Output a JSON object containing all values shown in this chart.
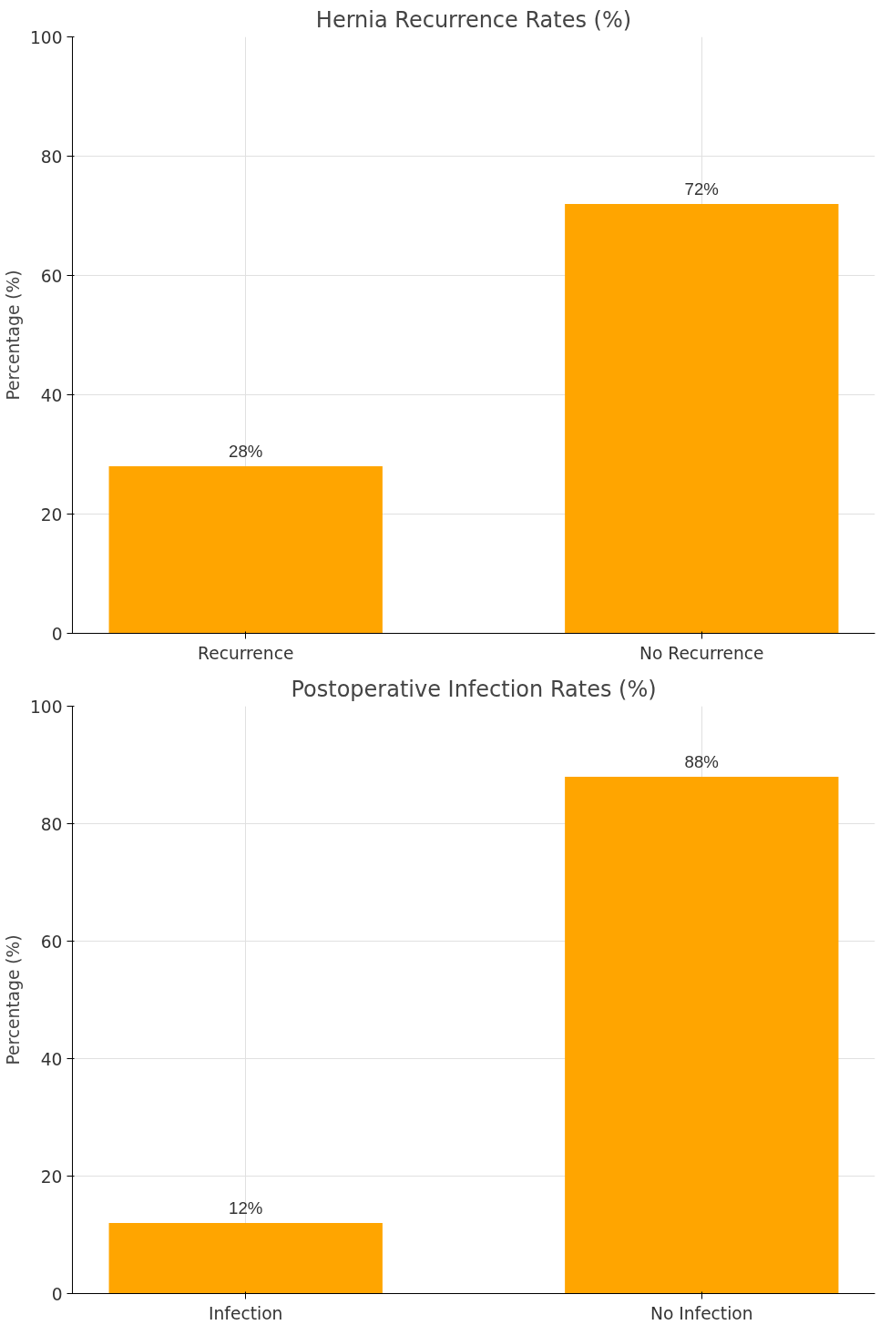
{
  "chart_data": [
    {
      "type": "bar",
      "title": "Hernia Recurrence Rates (%)",
      "ylabel": "Percentage (%)",
      "categories": [
        "Recurrence",
        "No Recurrence"
      ],
      "values": [
        28,
        72
      ],
      "color": "#ffa500",
      "ylim": [
        0,
        100
      ],
      "yticks": [
        0,
        20,
        40,
        60,
        80,
        100
      ],
      "grid": true,
      "data_labels": true,
      "value_labels": [
        "28%",
        "72%"
      ]
    },
    {
      "type": "bar",
      "title": "Postoperative Infection Rates (%)",
      "ylabel": "Percentage (%)",
      "categories": [
        "Infection",
        "No Infection"
      ],
      "values": [
        12,
        88
      ],
      "color": "#ffa500",
      "ylim": [
        0,
        100
      ],
      "yticks": [
        0,
        20,
        40,
        60,
        80,
        100
      ],
      "grid": true,
      "data_labels": true,
      "value_labels": [
        "12%",
        "88%"
      ]
    }
  ]
}
